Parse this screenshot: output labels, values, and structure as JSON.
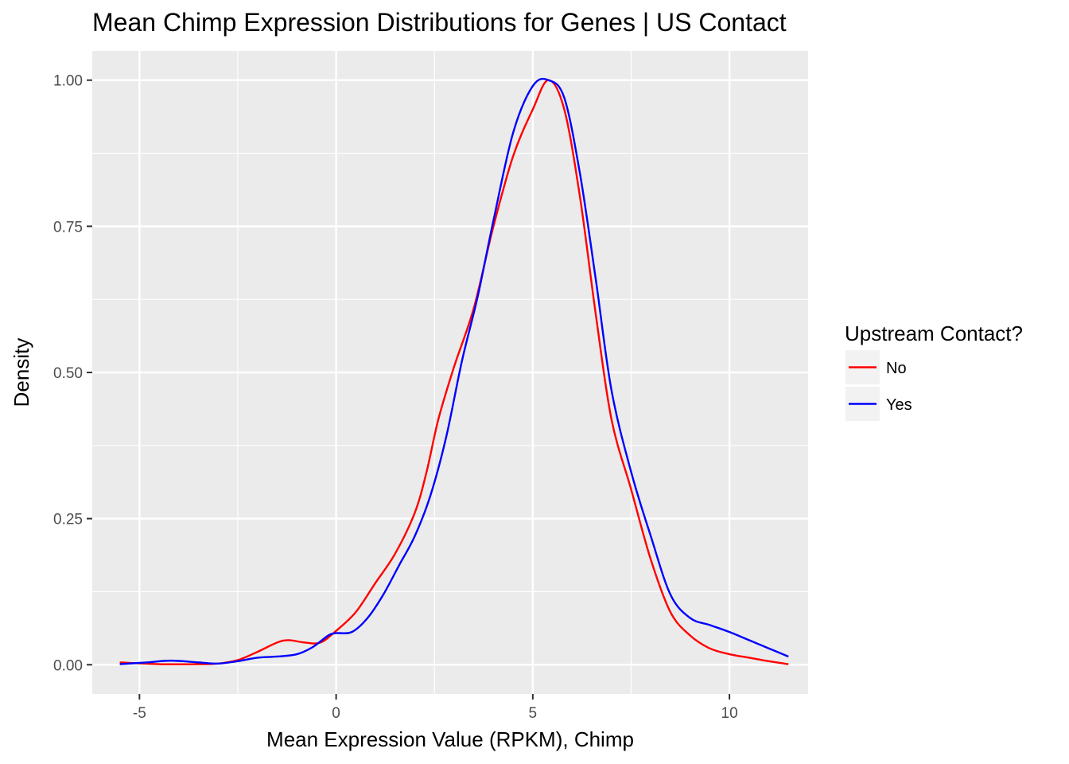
{
  "chart_data": {
    "type": "line",
    "title": "Mean Chimp Expression Distributions for Genes | US Contact",
    "xlabel": "Mean Expression Value (RPKM), Chimp",
    "ylabel": "Density",
    "xlim": [
      -6.2,
      12.0
    ],
    "ylim": [
      -0.05,
      1.05
    ],
    "x_ticks": [
      -5,
      0,
      5,
      10
    ],
    "x_tick_labels": [
      "-5",
      "0",
      "5",
      "10"
    ],
    "y_ticks": [
      0,
      0.25,
      0.5,
      0.75,
      1.0
    ],
    "y_tick_labels": [
      "0.00",
      "0.25",
      "0.50",
      "0.75",
      "1.00"
    ],
    "grid": true,
    "legend": {
      "title": "Upstream Contact?",
      "position": "right"
    },
    "series": [
      {
        "name": "No",
        "color": "#ff0000",
        "points": [
          [
            -5.5,
            0.004
          ],
          [
            -4.5,
            0.001
          ],
          [
            -3.5,
            0.001
          ],
          [
            -3.0,
            0.002
          ],
          [
            -2.5,
            0.008
          ],
          [
            -2.0,
            0.022
          ],
          [
            -1.5,
            0.038
          ],
          [
            -1.2,
            0.042
          ],
          [
            -0.8,
            0.038
          ],
          [
            -0.4,
            0.038
          ],
          [
            0.0,
            0.058
          ],
          [
            0.5,
            0.09
          ],
          [
            1.0,
            0.14
          ],
          [
            1.5,
            0.19
          ],
          [
            2.0,
            0.26
          ],
          [
            2.3,
            0.33
          ],
          [
            2.6,
            0.42
          ],
          [
            3.0,
            0.51
          ],
          [
            3.5,
            0.61
          ],
          [
            4.0,
            0.75
          ],
          [
            4.5,
            0.87
          ],
          [
            5.0,
            0.95
          ],
          [
            5.4,
            1.0
          ],
          [
            5.8,
            0.95
          ],
          [
            6.2,
            0.8
          ],
          [
            6.6,
            0.6
          ],
          [
            7.0,
            0.42
          ],
          [
            7.5,
            0.3
          ],
          [
            8.0,
            0.18
          ],
          [
            8.5,
            0.09
          ],
          [
            9.0,
            0.05
          ],
          [
            9.5,
            0.028
          ],
          [
            10.0,
            0.018
          ],
          [
            10.5,
            0.012
          ],
          [
            11.0,
            0.006
          ],
          [
            11.5,
            0.001
          ]
        ]
      },
      {
        "name": "Yes",
        "color": "#0000ff",
        "points": [
          [
            -5.5,
            0.001
          ],
          [
            -4.8,
            0.004
          ],
          [
            -4.2,
            0.007
          ],
          [
            -3.5,
            0.004
          ],
          [
            -3.0,
            0.002
          ],
          [
            -2.5,
            0.006
          ],
          [
            -2.0,
            0.012
          ],
          [
            -1.5,
            0.014
          ],
          [
            -1.0,
            0.018
          ],
          [
            -0.6,
            0.03
          ],
          [
            -0.2,
            0.05
          ],
          [
            0.0,
            0.054
          ],
          [
            0.4,
            0.056
          ],
          [
            0.8,
            0.08
          ],
          [
            1.2,
            0.12
          ],
          [
            1.6,
            0.17
          ],
          [
            2.0,
            0.22
          ],
          [
            2.4,
            0.29
          ],
          [
            2.8,
            0.39
          ],
          [
            3.2,
            0.52
          ],
          [
            3.6,
            0.63
          ],
          [
            4.0,
            0.76
          ],
          [
            4.5,
            0.91
          ],
          [
            5.0,
            0.99
          ],
          [
            5.4,
            1.0
          ],
          [
            5.8,
            0.97
          ],
          [
            6.2,
            0.84
          ],
          [
            6.6,
            0.66
          ],
          [
            7.0,
            0.47
          ],
          [
            7.5,
            0.33
          ],
          [
            8.0,
            0.22
          ],
          [
            8.5,
            0.12
          ],
          [
            9.0,
            0.08
          ],
          [
            9.5,
            0.068
          ],
          [
            10.0,
            0.056
          ],
          [
            10.5,
            0.042
          ],
          [
            11.0,
            0.028
          ],
          [
            11.5,
            0.014
          ]
        ]
      }
    ]
  }
}
